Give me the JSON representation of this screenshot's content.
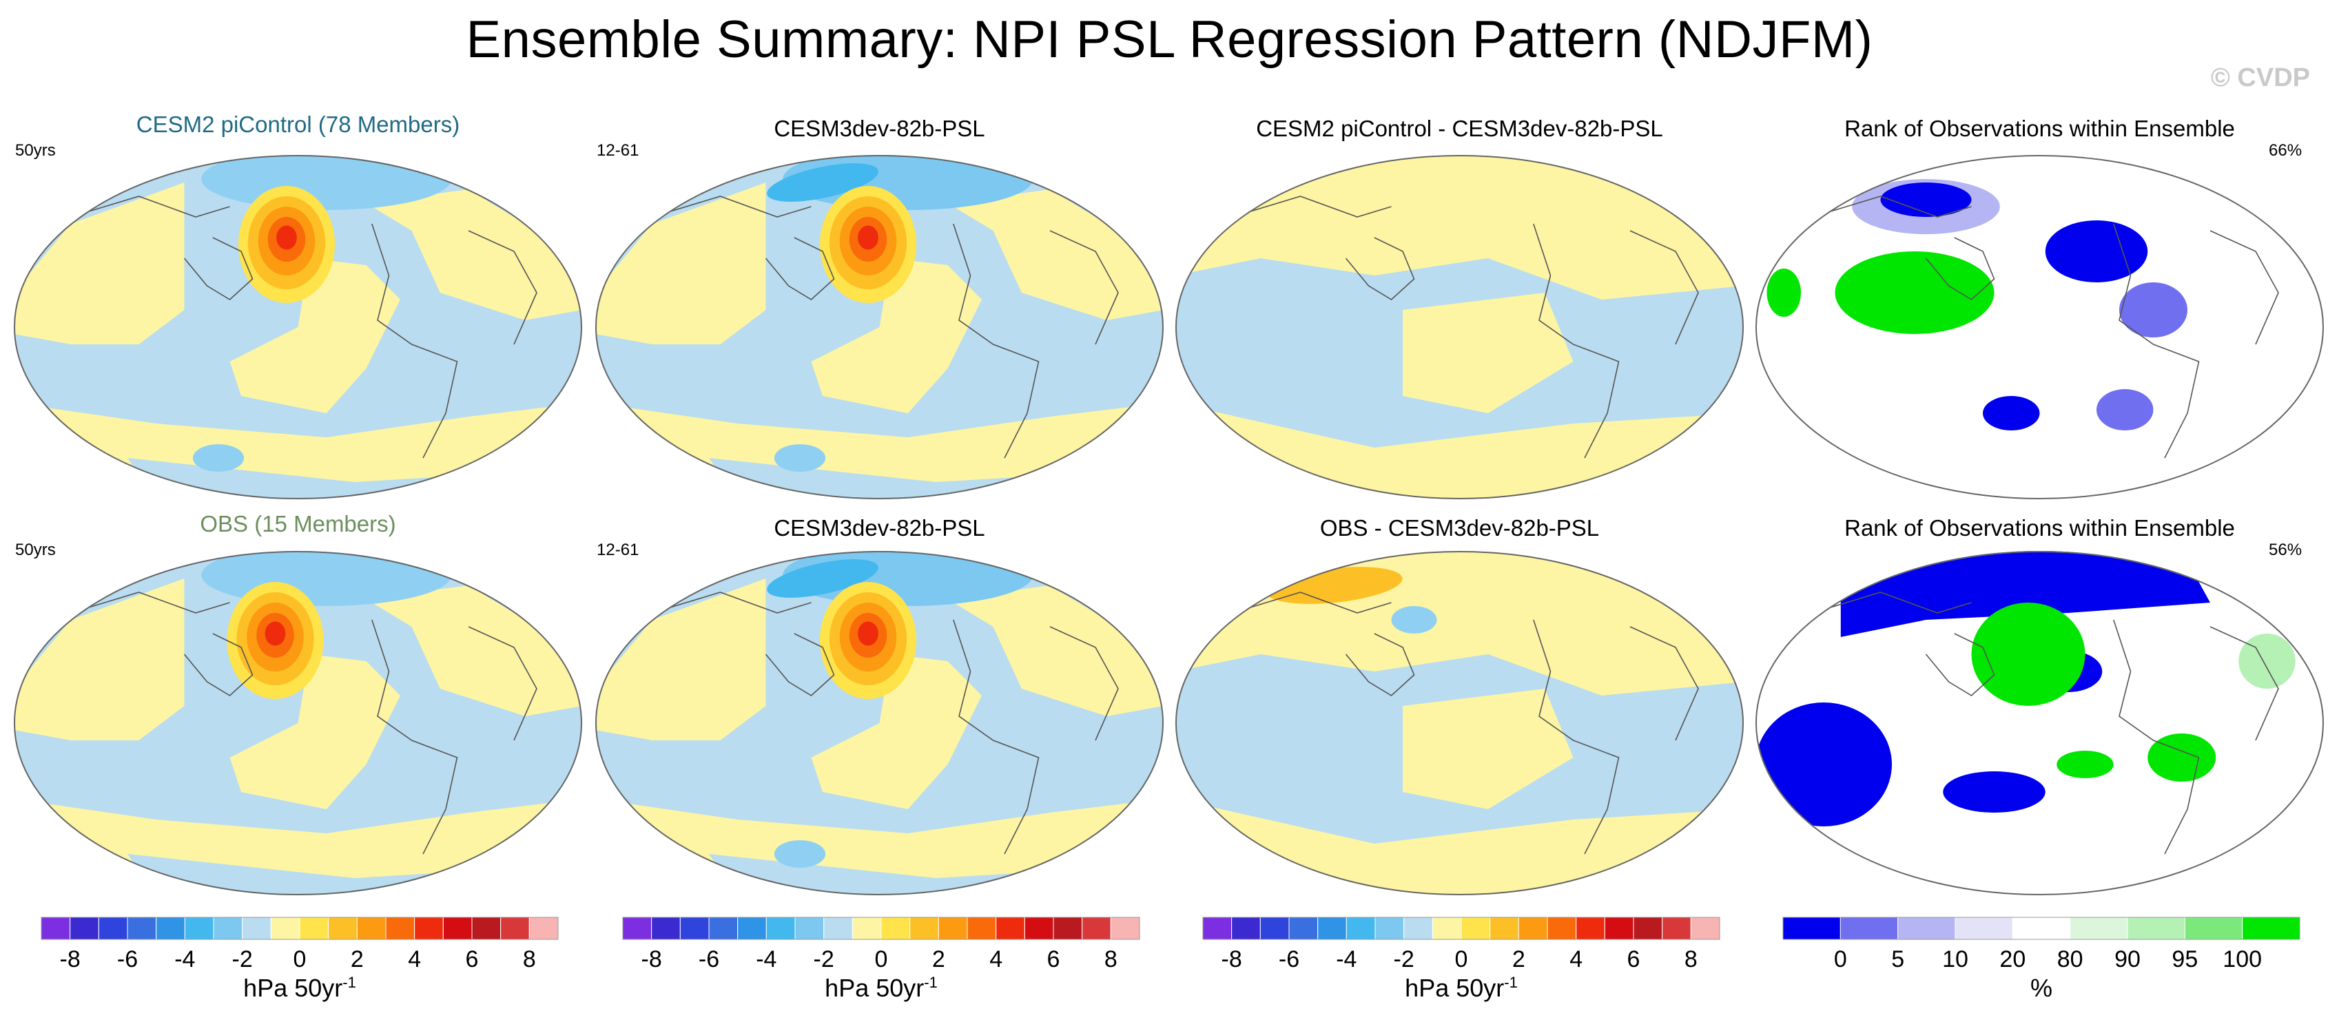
{
  "title": "Ensemble Summary: NPI PSL Regression Pattern (NDJFM)",
  "watermark": "© CVDP",
  "colors": {
    "blue_fill": "#b9dcf0",
    "yellow_fill": "#fdf5a3",
    "cesm2_title": "#1f6a86",
    "obs_title": "#6b8f5d",
    "coast": "#555555"
  },
  "chart_data": [
    {
      "type": "map",
      "title": "CESM2 piControl (78 Members)",
      "title_color": "#1f6a86",
      "side_label": "50yrs",
      "row": 1,
      "col": 1,
      "variant": "model"
    },
    {
      "type": "map",
      "title": "CESM3dev-82b-PSL",
      "side_label": "12-61",
      "row": 1,
      "col": 2,
      "variant": "model_strong"
    },
    {
      "type": "map",
      "title": "CESM2 piControl - CESM3dev-82b-PSL",
      "side_label": "",
      "row": 1,
      "col": 3,
      "variant": "diff"
    },
    {
      "type": "map",
      "title": "Rank of Observations within Ensemble",
      "side_label": "66%",
      "row": 1,
      "col": 4,
      "variant": "rank1"
    },
    {
      "type": "map",
      "title": "OBS (15 Members)",
      "title_color": "#6b8f5d",
      "side_label": "50yrs",
      "row": 2,
      "col": 1,
      "variant": "obs"
    },
    {
      "type": "map",
      "title": "CESM3dev-82b-PSL",
      "side_label": "12-61",
      "row": 2,
      "col": 2,
      "variant": "model_strong"
    },
    {
      "type": "map",
      "title": "OBS - CESM3dev-82b-PSL",
      "side_label": "",
      "row": 2,
      "col": 3,
      "variant": "diff_obs"
    },
    {
      "type": "map",
      "title": "Rank of Observations within Ensemble",
      "side_label": "56%",
      "row": 2,
      "col": 4,
      "variant": "rank2"
    }
  ],
  "colorbars": [
    {
      "kind": "psl",
      "title": "hPa 50yr",
      "title_sup": "-1",
      "labels": [
        "-8",
        "-6",
        "-4",
        "-2",
        "0",
        "2",
        "4",
        "6",
        "8"
      ],
      "colors": [
        "#7b2fe0",
        "#3a2ad0",
        "#2f44dc",
        "#3a6fe0",
        "#2f93e6",
        "#43b8ee",
        "#7cc8f0",
        "#b9dcf0",
        "#fdf5a3",
        "#fee34b",
        "#fdbf26",
        "#fc9a12",
        "#f86a0a",
        "#ee2b0c",
        "#d40d13",
        "#b81a1f",
        "#d8383a",
        "#f8b3b3"
      ]
    },
    {
      "kind": "psl",
      "title": "hPa 50yr",
      "title_sup": "-1",
      "labels": [
        "-8",
        "-6",
        "-4",
        "-2",
        "0",
        "2",
        "4",
        "6",
        "8"
      ],
      "colors": [
        "#7b2fe0",
        "#3a2ad0",
        "#2f44dc",
        "#3a6fe0",
        "#2f93e6",
        "#43b8ee",
        "#7cc8f0",
        "#b9dcf0",
        "#fdf5a3",
        "#fee34b",
        "#fdbf26",
        "#fc9a12",
        "#f86a0a",
        "#ee2b0c",
        "#d40d13",
        "#b81a1f",
        "#d8383a",
        "#f8b3b3"
      ]
    },
    {
      "kind": "psl",
      "title": "hPa 50yr",
      "title_sup": "-1",
      "labels": [
        "-8",
        "-6",
        "-4",
        "-2",
        "0",
        "2",
        "4",
        "6",
        "8"
      ],
      "colors": [
        "#7b2fe0",
        "#3a2ad0",
        "#2f44dc",
        "#3a6fe0",
        "#2f93e6",
        "#43b8ee",
        "#7cc8f0",
        "#b9dcf0",
        "#fdf5a3",
        "#fee34b",
        "#fdbf26",
        "#fc9a12",
        "#f86a0a",
        "#ee2b0c",
        "#d40d13",
        "#b81a1f",
        "#d8383a",
        "#f8b3b3"
      ]
    },
    {
      "kind": "rank",
      "title": "%",
      "title_sup": "",
      "labels": [
        "0",
        "5",
        "10",
        "20",
        "80",
        "90",
        "95",
        "100"
      ],
      "colors": [
        "#0000ee",
        "#6f6ff0",
        "#b5b5f3",
        "#e3e3f8",
        "#ffffff",
        "#dcf6dc",
        "#b5f0b5",
        "#7ce87c",
        "#00e600"
      ]
    }
  ]
}
